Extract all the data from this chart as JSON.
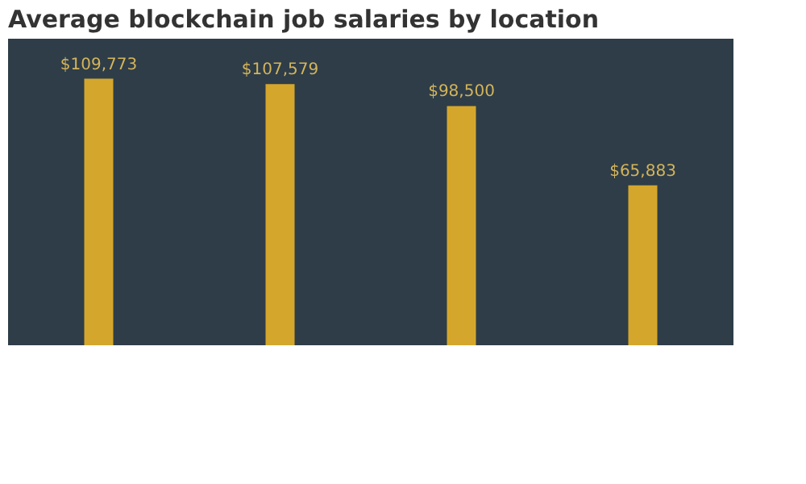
{
  "chart_data": {
    "type": "bar",
    "title": "Average blockchain job salaries by location",
    "categories": [
      null,
      null,
      null,
      null
    ],
    "values": [
      109773,
      107579,
      98500,
      65883
    ],
    "value_labels": [
      "$109,773",
      "$107,579",
      "$98,500",
      "$65,883"
    ],
    "color": "#d4a72c",
    "grid": false
  }
}
